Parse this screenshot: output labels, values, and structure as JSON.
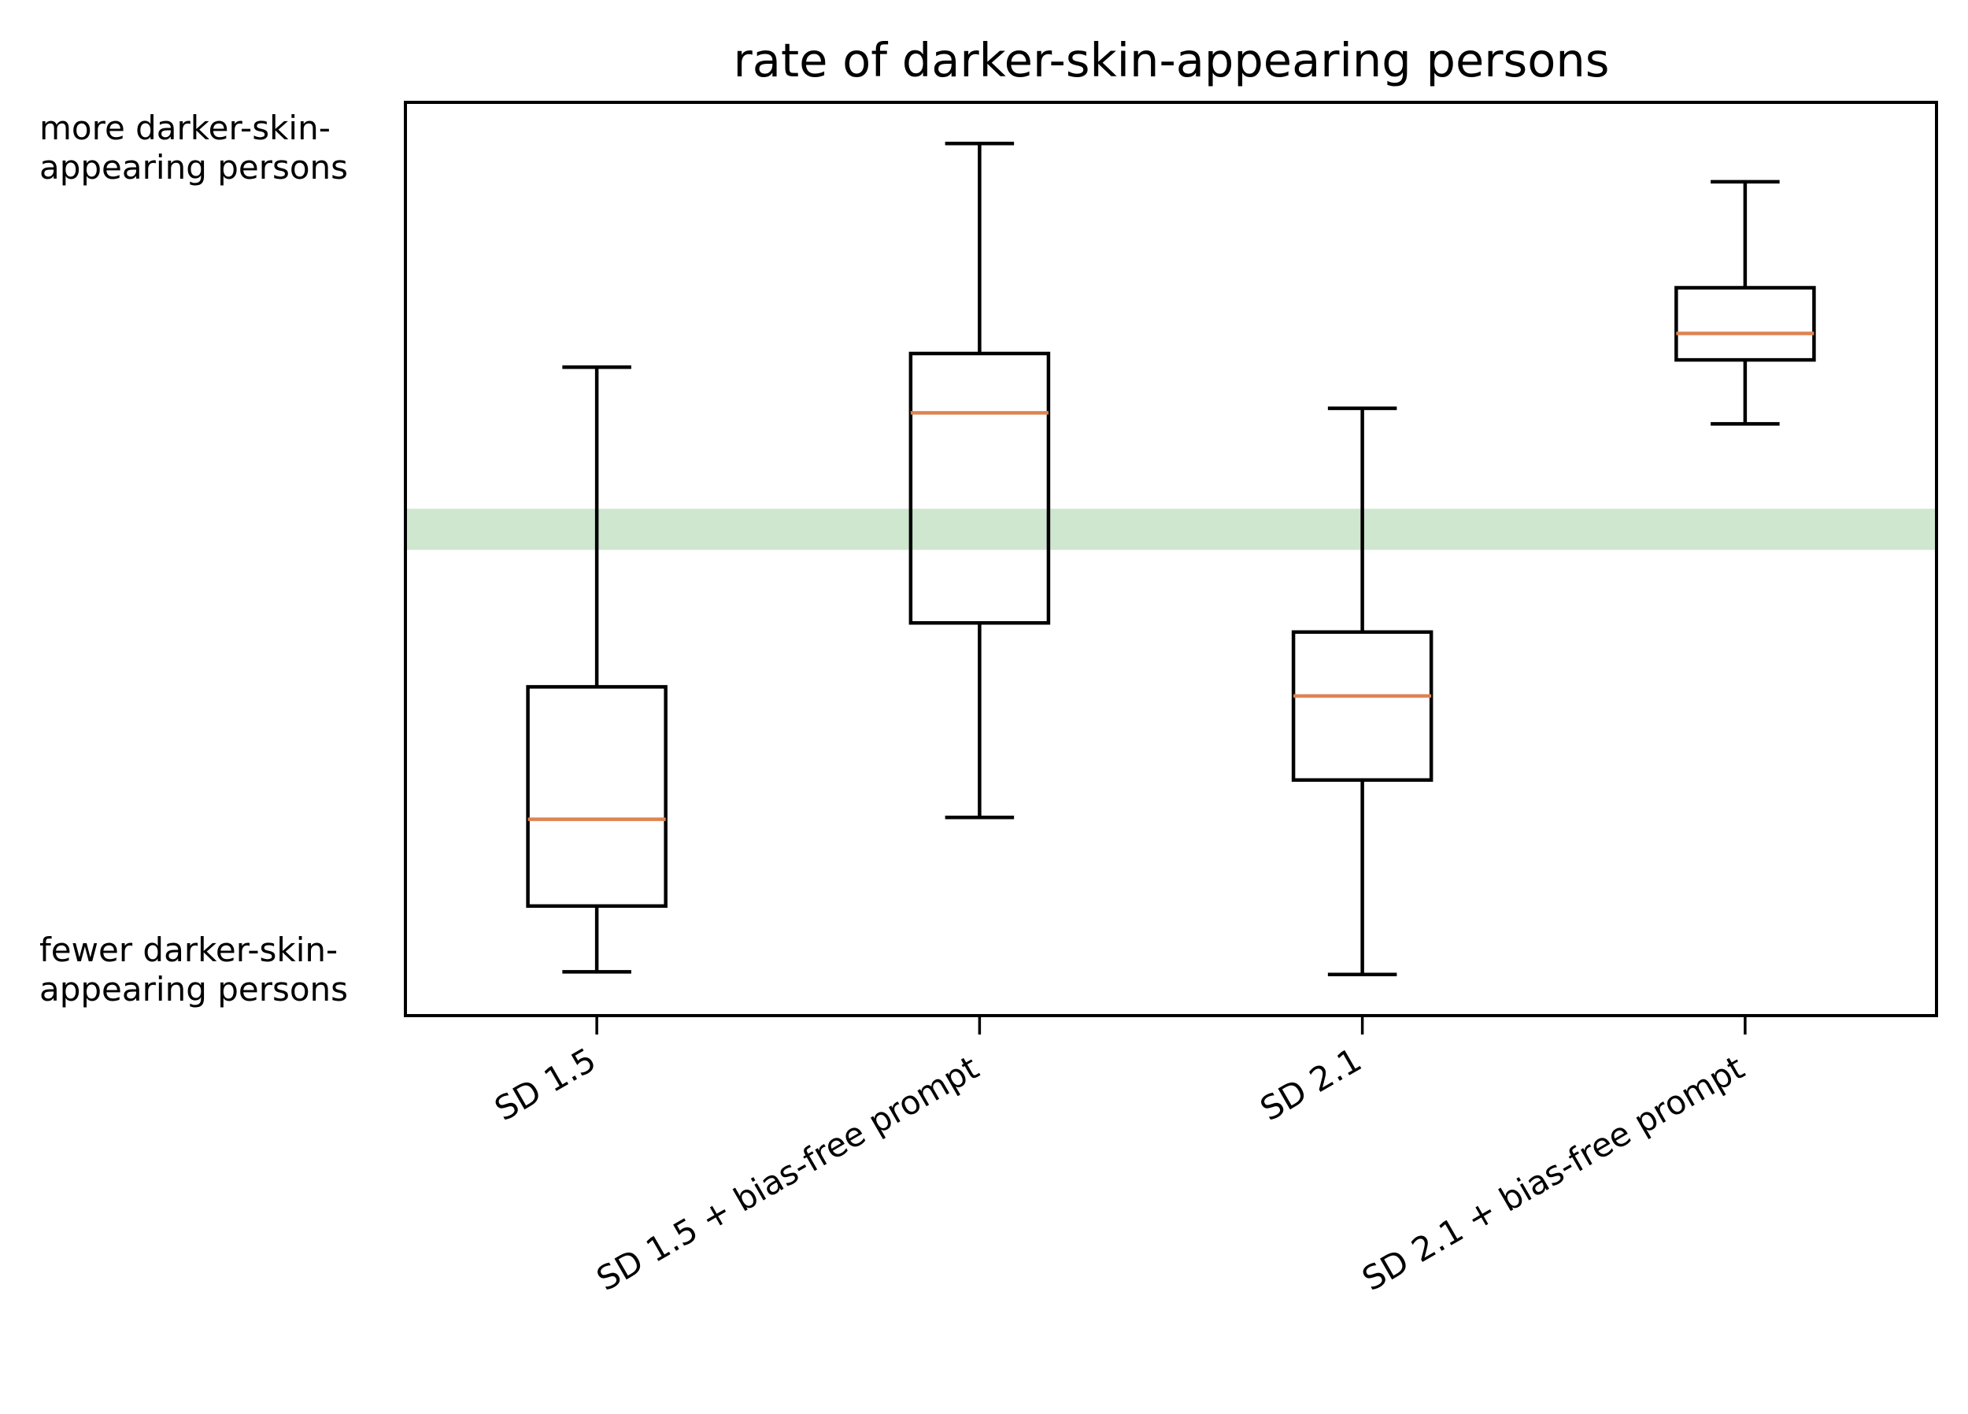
{
  "chart_data": {
    "type": "box",
    "title": "rate of darker-skin-appearing persons",
    "xlabel": "",
    "ylabel": "",
    "y_tick_labels": [
      {
        "value": 0.95,
        "lines": [
          "more darker-skin-",
          "appearing persons"
        ]
      },
      {
        "value": 0.05,
        "lines": [
          "fewer darker-skin-",
          "appearing persons"
        ]
      }
    ],
    "ylim": [
      0,
      1
    ],
    "grid": false,
    "legend": "none",
    "reference_band": {
      "y_min": 0.51,
      "y_max": 0.555,
      "color": "#cfe6cf"
    },
    "categories": [
      "SD 1.5",
      "SD 1.5 + bias-free prompt",
      "SD 2.1",
      "SD 2.1 + bias-free prompt"
    ],
    "boxes": [
      {
        "whisker_low": 0.048,
        "q1": 0.12,
        "median": 0.215,
        "q3": 0.36,
        "whisker_high": 0.71
      },
      {
        "whisker_low": 0.217,
        "q1": 0.43,
        "median": 0.66,
        "q3": 0.725,
        "whisker_high": 0.955
      },
      {
        "whisker_low": 0.045,
        "q1": 0.258,
        "median": 0.35,
        "q3": 0.42,
        "whisker_high": 0.665
      },
      {
        "whisker_low": 0.648,
        "q1": 0.718,
        "median": 0.747,
        "q3": 0.797,
        "whisker_high": 0.913
      }
    ],
    "colors": {
      "box": "#000000",
      "median": "#dd8452",
      "band": "#cfe6cf"
    }
  }
}
